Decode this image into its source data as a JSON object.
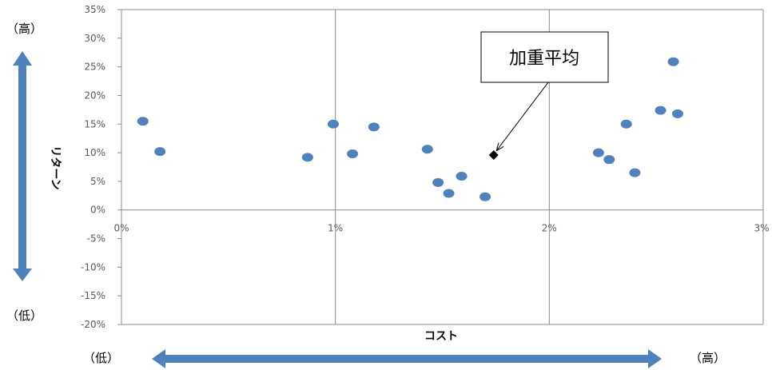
{
  "chart_data": {
    "type": "scatter",
    "xlabel": "コスト",
    "ylabel": "リターン",
    "xlim": [
      0,
      3
    ],
    "ylim": [
      -20,
      35
    ],
    "x_unit": "%",
    "y_unit": "%",
    "x_ticks": [
      "0%",
      "1%",
      "2%",
      "3%"
    ],
    "y_ticks": [
      "35%",
      "30%",
      "25%",
      "20%",
      "15%",
      "10%",
      "5%",
      "0%",
      "-5%",
      "-10%",
      "-15%",
      "-20%"
    ],
    "grid": "vertical",
    "points": [
      {
        "x": 0.1,
        "y": 15.5
      },
      {
        "x": 0.18,
        "y": 10.2
      },
      {
        "x": 0.87,
        "y": 9.2
      },
      {
        "x": 0.99,
        "y": 15.0
      },
      {
        "x": 1.08,
        "y": 9.8
      },
      {
        "x": 1.18,
        "y": 14.5
      },
      {
        "x": 1.43,
        "y": 10.6
      },
      {
        "x": 1.48,
        "y": 4.8
      },
      {
        "x": 1.53,
        "y": 2.9
      },
      {
        "x": 1.59,
        "y": 5.9
      },
      {
        "x": 1.7,
        "y": 2.3
      },
      {
        "x": 2.23,
        "y": 10.0
      },
      {
        "x": 2.28,
        "y": 8.8
      },
      {
        "x": 2.36,
        "y": 15.0
      },
      {
        "x": 2.4,
        "y": 6.5
      },
      {
        "x": 2.52,
        "y": 17.4
      },
      {
        "x": 2.58,
        "y": 25.9
      },
      {
        "x": 2.6,
        "y": 16.8
      }
    ],
    "highlight": {
      "label": "加重平均",
      "x": 1.74,
      "y": 9.6,
      "marker": "diamond"
    },
    "point_color": "#4F81BD",
    "highlight_color": "#000000",
    "arrow_color": "#4F81BD"
  },
  "annotations": {
    "y_high": "（高）",
    "y_low": "（低）",
    "x_low": "（低）",
    "x_high": "（高）"
  }
}
